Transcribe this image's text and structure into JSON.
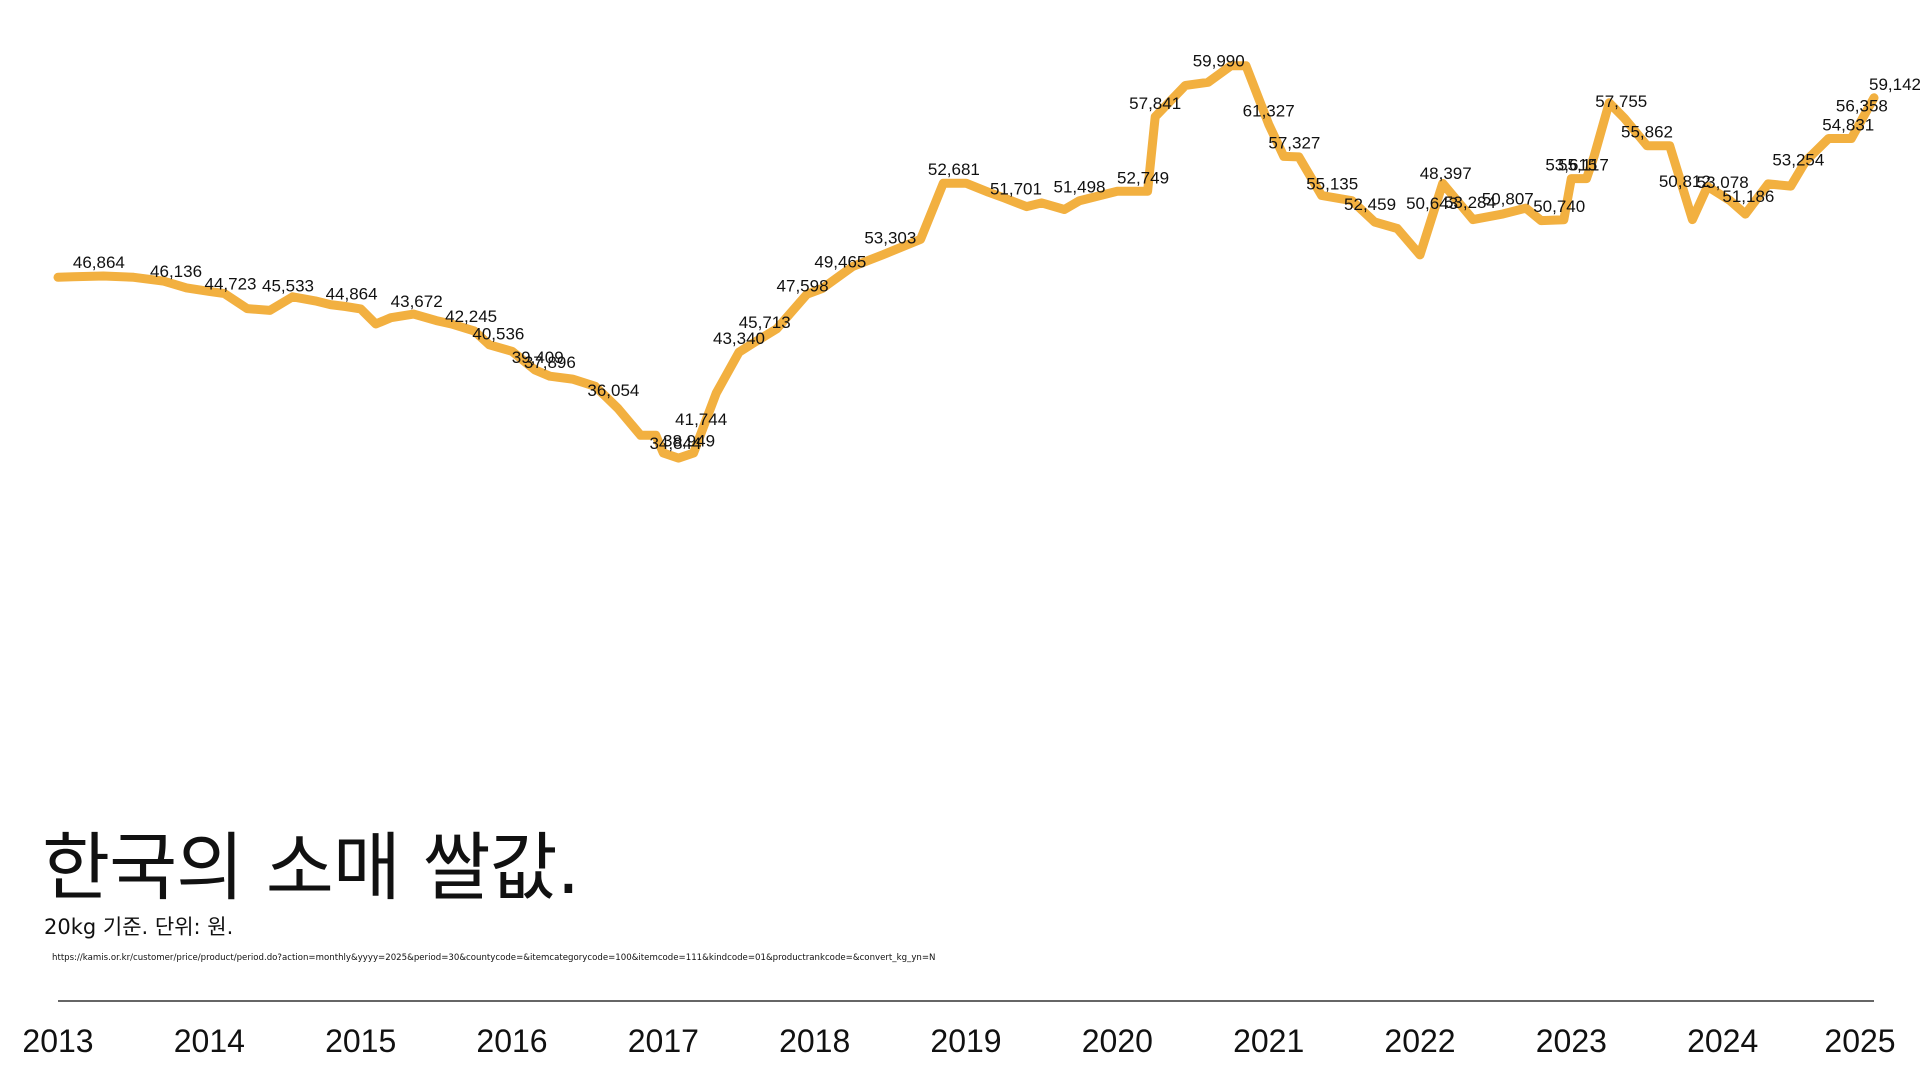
{
  "title": "한국의 소매 쌀값.",
  "subtitle": "20kg 기준. 단위: 원.",
  "source": "https://kamis.or.kr/customer/price/product/period.do?action=monthly&yyyy=2025&period=30&countycode=&itemcategorycode=100&itemcode=111&kindcode=01&productrankcode=&convert_kg_yn=N",
  "colors": {
    "line": "#F2B040",
    "axis": "#333333",
    "text": "#111111"
  },
  "chart_data": {
    "type": "line",
    "title": "한국의 소매 쌀값.",
    "ylabel": "",
    "xlabel": "",
    "x_ticks": [
      "2013",
      "2014",
      "2015",
      "2016",
      "2017",
      "2018",
      "2019",
      "2020",
      "2021",
      "2022",
      "2023",
      "2024",
      "2025"
    ],
    "xlim": [
      2013,
      2025
    ],
    "ylim": [
      33000,
      62000
    ],
    "grid": false,
    "x": [
      2013.0,
      2013.1,
      2013.3,
      2013.5,
      2013.7,
      2013.85,
      2014.0,
      2014.1,
      2014.25,
      2014.4,
      2014.55,
      2014.7,
      2014.8,
      2014.9,
      2015.0,
      2015.1,
      2015.2,
      2015.35,
      2015.5,
      2015.6,
      2015.75,
      2015.85,
      2016.0,
      2016.15,
      2016.25,
      2016.4,
      2016.55,
      2016.7,
      2016.85,
      2016.95,
      2017.0,
      2017.1,
      2017.2,
      2017.35,
      2017.5,
      2017.6,
      2017.75,
      2017.95,
      2018.05,
      2018.25,
      2018.45,
      2018.7,
      2018.85,
      2019.0,
      2019.15,
      2019.25,
      2019.4,
      2019.5,
      2019.65,
      2019.75,
      2020.0,
      2020.2,
      2020.25,
      2020.45,
      2020.6,
      2020.75,
      2020.85,
      2021.0,
      2021.1,
      2021.2,
      2021.35,
      2021.55,
      2021.7,
      2021.85,
      2022.0,
      2022.15,
      2022.35,
      2022.55,
      2022.7,
      2022.8,
      2022.95,
      2023.0,
      2023.1,
      2023.15,
      2023.25,
      2023.35,
      2023.5,
      2023.65,
      2023.8,
      2023.9,
      2024.05,
      2024.15,
      2024.3,
      2024.45,
      2024.55,
      2024.7,
      2024.85,
      2025.0
    ],
    "values": [
      46864,
      46900,
      46950,
      46864,
      46600,
      46136,
      45900,
      45750,
      44723,
      44600,
      45533,
      45250,
      45000,
      44864,
      44700,
      43672,
      44100,
      44350,
      43900,
      43672,
      43200,
      42245,
      41800,
      40536,
      40100,
      39900,
      39409,
      37896,
      36054,
      36054,
      34844,
      34500,
      34844,
      38949,
      41744,
      42400,
      43340,
      45713,
      46100,
      47598,
      48400,
      49465,
      53303,
      53303,
      52681,
      52300,
      51701,
      51950,
      51498,
      52100,
      52749,
      52749,
      57841,
      59990,
      60200,
      61327,
      61327,
      57327,
      55135,
      55100,
      52459,
      52100,
      50643,
      50200,
      48397,
      53284,
      50807,
      51200,
      51600,
      50740,
      50800,
      53615,
      53615,
      55117,
      58800,
      57755,
      55862,
      55862,
      50812,
      53078,
      52100,
      51186,
      53254,
      53100,
      54831,
      56358,
      56358,
      59142
    ],
    "labels": [
      {
        "x": 2013.27,
        "v": "46,864"
      },
      {
        "x": 2013.78,
        "v": "46,136"
      },
      {
        "x": 2014.14,
        "v": "44,723"
      },
      {
        "x": 2014.52,
        "v": "45,533"
      },
      {
        "x": 2014.94,
        "v": "44,864"
      },
      {
        "x": 2015.37,
        "v": "43,672"
      },
      {
        "x": 2015.73,
        "v": "42,245"
      },
      {
        "x": 2015.91,
        "v": "40,536"
      },
      {
        "x": 2016.17,
        "v": "39,409"
      },
      {
        "x": 2016.25,
        "v": "37,896"
      },
      {
        "x": 2016.67,
        "v": "36,054"
      },
      {
        "x": 2017.08,
        "v": "34,844"
      },
      {
        "x": 2017.17,
        "v": "38,949"
      },
      {
        "x": 2017.25,
        "v": "41,744"
      },
      {
        "x": 2017.5,
        "v": "43,340"
      },
      {
        "x": 2017.67,
        "v": "45,713"
      },
      {
        "x": 2017.92,
        "v": "47,598"
      },
      {
        "x": 2018.17,
        "v": "49,465"
      },
      {
        "x": 2018.5,
        "v": "53,303"
      },
      {
        "x": 2018.92,
        "v": "52,681"
      },
      {
        "x": 2019.33,
        "v": "51,701"
      },
      {
        "x": 2019.75,
        "v": "51,498"
      },
      {
        "x": 2020.17,
        "v": "52,749"
      },
      {
        "x": 2020.25,
        "v": "57,841"
      },
      {
        "x": 2020.67,
        "v": "59,990"
      },
      {
        "x": 2021.0,
        "v": "61,327"
      },
      {
        "x": 2021.17,
        "v": "57,327"
      },
      {
        "x": 2021.42,
        "v": "55,135"
      },
      {
        "x": 2021.67,
        "v": "52,459"
      },
      {
        "x": 2022.08,
        "v": "50,643"
      },
      {
        "x": 2022.17,
        "v": "48,397"
      },
      {
        "x": 2022.33,
        "v": "53,284"
      },
      {
        "x": 2022.58,
        "v": "50,807"
      },
      {
        "x": 2022.92,
        "v": "50,740"
      },
      {
        "x": 2023.0,
        "v": "53,615"
      },
      {
        "x": 2023.08,
        "v": "55,117"
      },
      {
        "x": 2023.33,
        "v": "57,755"
      },
      {
        "x": 2023.5,
        "v": "55,862"
      },
      {
        "x": 2023.75,
        "v": "50,812"
      },
      {
        "x": 2024.0,
        "v": "53,078"
      },
      {
        "x": 2024.17,
        "v": "51,186"
      },
      {
        "x": 2024.5,
        "v": "53,254"
      },
      {
        "x": 2024.83,
        "v": "54,831"
      },
      {
        "x": 2024.92,
        "v": "56,358"
      },
      {
        "x": 2025.17,
        "v": "59,142"
      }
    ]
  }
}
